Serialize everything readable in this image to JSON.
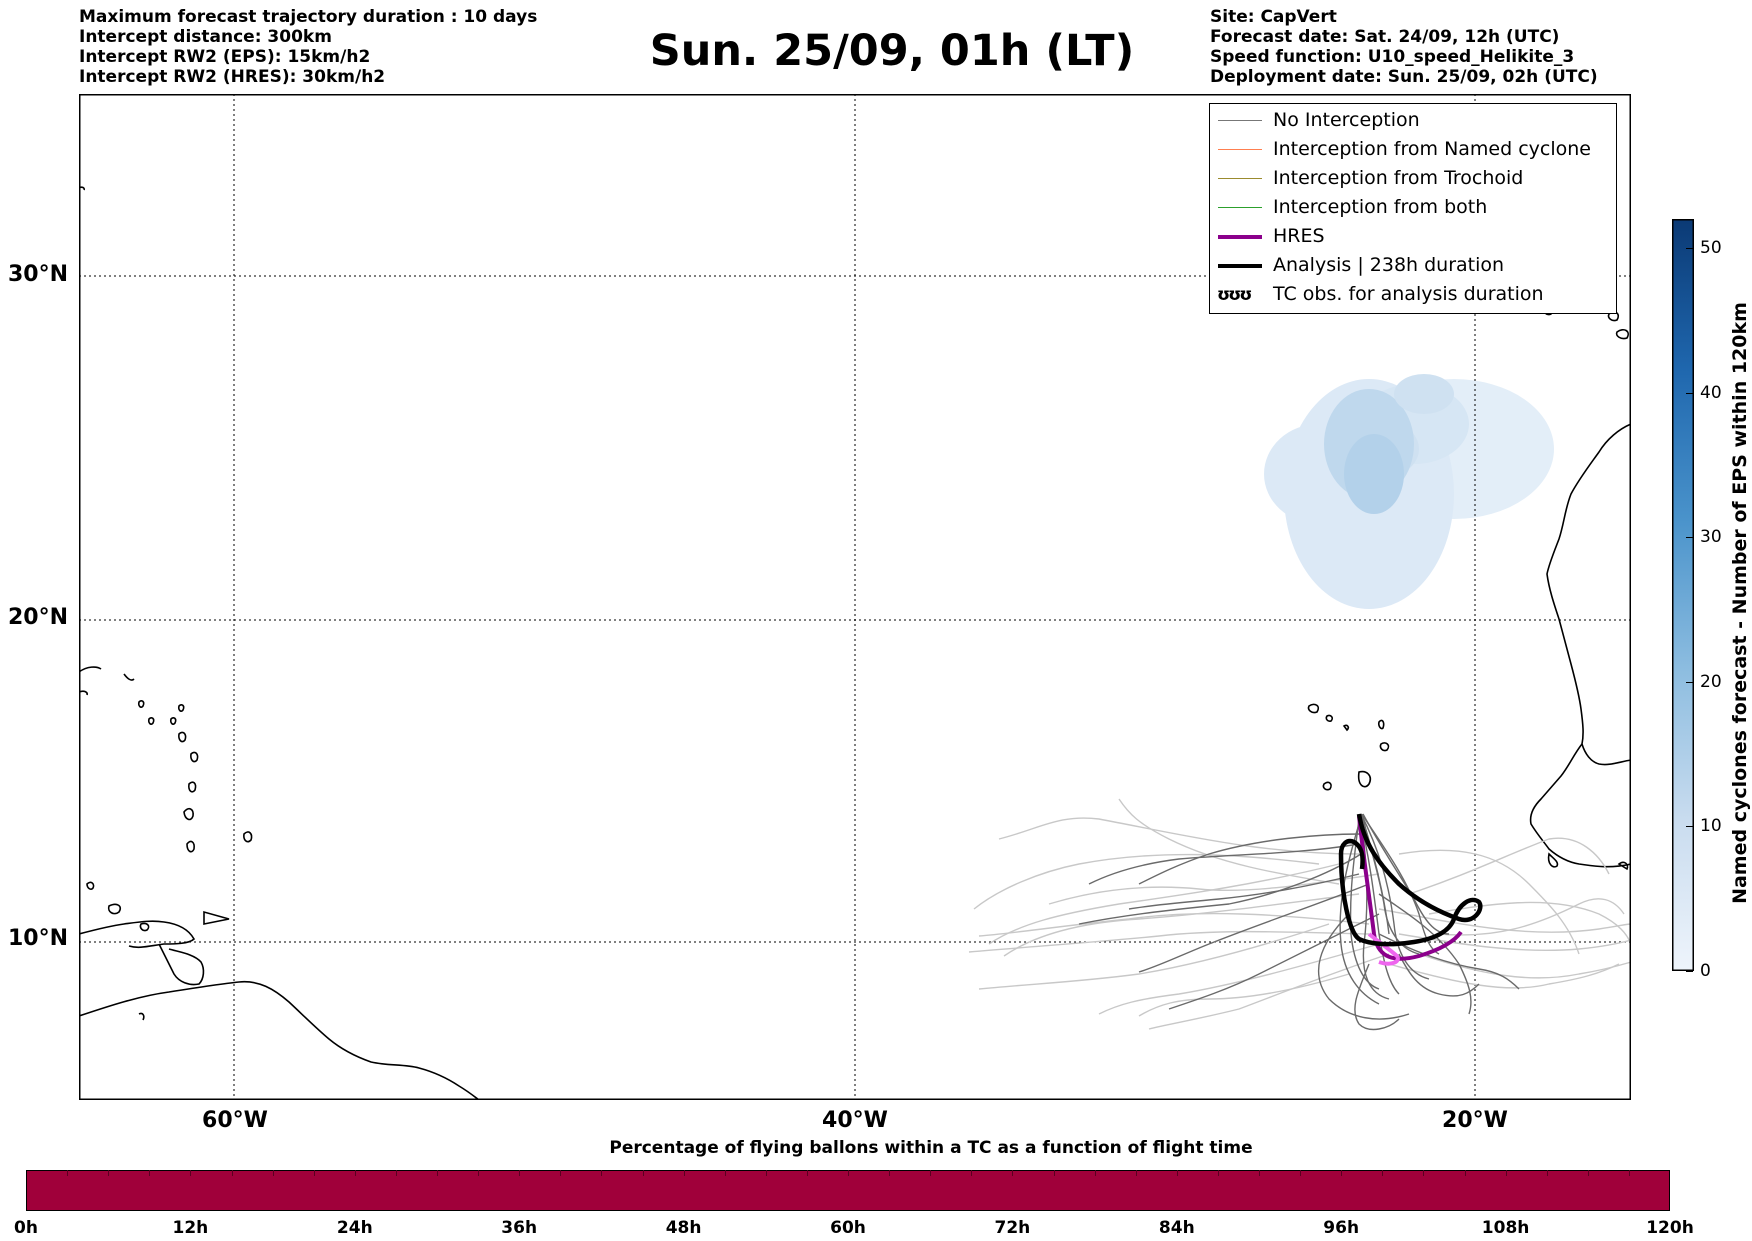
{
  "header": {
    "left_lines": [
      "Maximum forecast trajectory duration : 10 days",
      "Intercept distance: 300km",
      "Intercept RW2 (EPS):  15km/h2",
      "Intercept RW2 (HRES): 30km/h2"
    ],
    "title": "Sun. 25/09, 01h (LT)",
    "right_lines": [
      "Site: CapVert",
      "Forecast date: Sat. 24/09, 12h (UTC)",
      "Speed function: U10_speed_Helikite_3",
      "Deployment date: Sun. 25/09, 02h (UTC)"
    ]
  },
  "map": {
    "lat_labels": [
      "30°N",
      "20°N",
      "10°N"
    ],
    "lon_labels": [
      "60°W",
      "40°W",
      "20°W"
    ],
    "lat_values": [
      30,
      20,
      10
    ],
    "lon_values": [
      -60,
      -40,
      -20
    ],
    "extent": {
      "lon_min": -65,
      "lon_max": -15,
      "lat_min": 5.4,
      "lat_max": 35.3
    },
    "grid": "dotted"
  },
  "legend": {
    "items": [
      {
        "label": "No Interception",
        "color": "#777777"
      },
      {
        "label": "Interception from Named cyclone",
        "color": "#ff7f50"
      },
      {
        "label": "Interception from Trochoid",
        "color": "#9b8b2e"
      },
      {
        "label": "Interception from both",
        "color": "#2ca02c"
      },
      {
        "label": "HRES",
        "color": "#8b008b"
      },
      {
        "label": "Analysis | 238h duration",
        "color": "#000000"
      },
      {
        "label": "TC obs. for analysis duration",
        "symbol": "ʊʊʊ"
      }
    ]
  },
  "colorbar_right": {
    "label": "Named cyclones forecast - Number of EPS within 120km",
    "ticks": [
      "0",
      "10",
      "20",
      "30",
      "40",
      "50"
    ],
    "min": 0,
    "max": 52,
    "color_low": "#e8f1fa",
    "color_high": "#0b3a75"
  },
  "colorbar_bottom": {
    "title": "Percentage of flying ballons within a TC as a function of flight time",
    "ticks": [
      "0h",
      "12h",
      "24h",
      "36h",
      "48h",
      "60h",
      "72h",
      "84h",
      "96h",
      "108h",
      "120h"
    ],
    "fill_color": "#a0003a"
  },
  "colors": {
    "eps_light": "#c8c8c8",
    "eps_dark": "#6a6a6a",
    "hres": "#8b008b",
    "hres_light": "#ee66ee",
    "analysis": "#000000"
  }
}
